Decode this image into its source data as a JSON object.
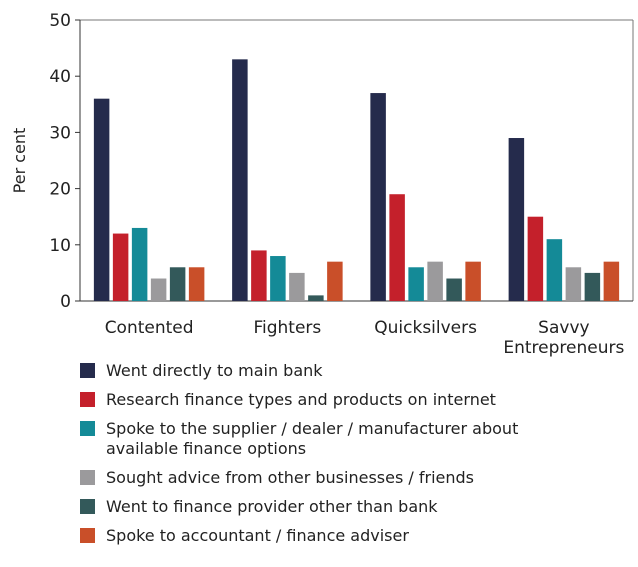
{
  "chart_data": {
    "type": "bar",
    "ylabel": "Per cent",
    "ylim": [
      0,
      50
    ],
    "yticks": [
      0,
      10,
      20,
      30,
      40,
      50
    ],
    "grid": false,
    "legend_position": "bottom",
    "categories": [
      [
        "Contented"
      ],
      [
        "Fighters"
      ],
      [
        "Quicksilvers"
      ],
      [
        "Savvy",
        "Entrepreneurs"
      ]
    ],
    "series": [
      {
        "name": [
          "Went directly to main bank"
        ],
        "color": "#252b4c",
        "values": [
          36,
          43,
          37,
          29
        ]
      },
      {
        "name": [
          "Research finance types and products on internet"
        ],
        "color": "#c4202b",
        "values": [
          12,
          9,
          19,
          15
        ]
      },
      {
        "name": [
          "Spoke to the supplier / dealer / manufacturer about",
          "available finance options"
        ],
        "color": "#148a97",
        "values": [
          13,
          8,
          6,
          11
        ]
      },
      {
        "name": [
          "Sought advice from other businesses / friends"
        ],
        "color": "#9b9a9c",
        "values": [
          4,
          5,
          7,
          6
        ]
      },
      {
        "name": [
          "Went to finance provider other than bank"
        ],
        "color": "#33595a",
        "values": [
          6,
          1,
          4,
          5
        ]
      },
      {
        "name": [
          "Spoke to accountant / finance adviser"
        ],
        "color": "#c94f29",
        "values": [
          6,
          7,
          7,
          7
        ]
      }
    ]
  }
}
